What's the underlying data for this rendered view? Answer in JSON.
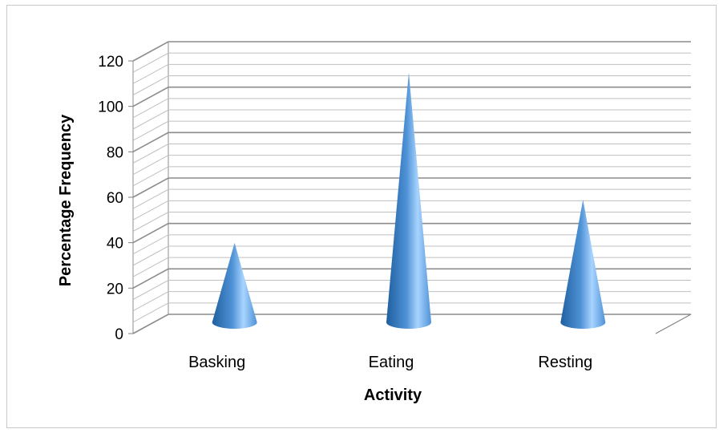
{
  "chart_data": {
    "type": "bar",
    "style": "3d-cone",
    "categories": [
      "Basking",
      "Eating",
      "Resting"
    ],
    "values": [
      35,
      110,
      54
    ],
    "xlabel": "Activity",
    "ylabel": "Percentage  Frequency",
    "ylim": [
      0,
      120
    ],
    "yticks": [
      "0",
      "20",
      "40",
      "60",
      "80",
      "100",
      "120"
    ],
    "grid": true,
    "legend": "none",
    "colors": {
      "cone_dark": "#1f5f9f",
      "cone_mid": "#4f92d6",
      "cone_light": "#a8d4ff",
      "gridline": "#c0c0c0",
      "gridline_major": "#8c8c8c"
    }
  }
}
